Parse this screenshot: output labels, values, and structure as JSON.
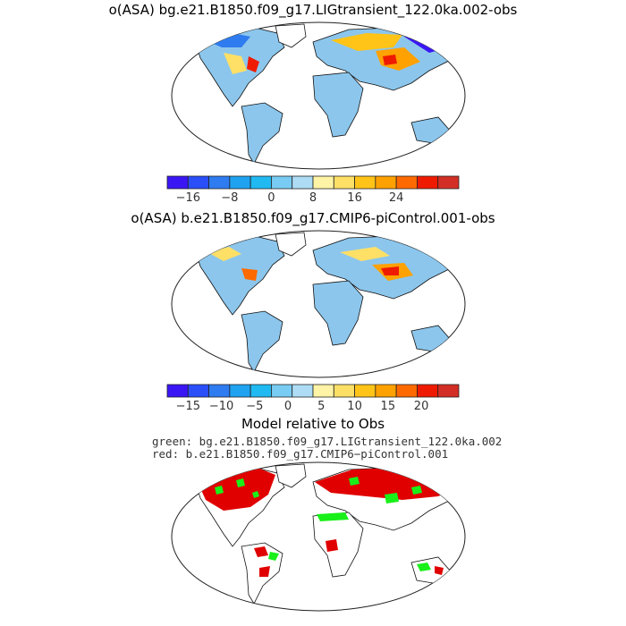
{
  "panels": [
    {
      "title": "o(ASA) bg.e21.B1850.f09_g17.LIGtransient_122.0ka.002-obs",
      "colorbar": {
        "tick_labels": [
          "−16",
          "−8",
          "0",
          "8",
          "16",
          "24"
        ],
        "colors": [
          "#3b16f5",
          "#2a4ef7",
          "#2f7bf0",
          "#1fa2f0",
          "#20b9f2",
          "#78cbf2",
          "#aedcf5",
          "#fff3a6",
          "#ffe066",
          "#ffc417",
          "#ffa100",
          "#ff6a00",
          "#ef1b00",
          "#d32e25"
        ]
      }
    },
    {
      "title": "o(ASA) b.e21.B1850.f09_g17.CMIP6-piControl.001-obs",
      "colorbar": {
        "tick_labels": [
          "−15",
          "−10",
          "−5",
          "0",
          "5",
          "10",
          "15",
          "20"
        ],
        "colors": [
          "#3b16f5",
          "#2a4ef7",
          "#2f7bf0",
          "#1fa2f0",
          "#20b9f2",
          "#78cbf2",
          "#aedcf5",
          "#fff3a6",
          "#ffe066",
          "#ffc417",
          "#ffa100",
          "#ff6a00",
          "#ef1b00",
          "#d32e25"
        ]
      }
    },
    {
      "title": "Model relative to Obs",
      "legend_green": "green: bg.e21.B1850.f09_g17.LIGtransient_122.0ka.002",
      "legend_red": "red: b.e21.B1850.f09_g17.CMIP6−piControl.001",
      "colors": {
        "green": "#19f019",
        "red": "#e00000"
      }
    }
  ]
}
